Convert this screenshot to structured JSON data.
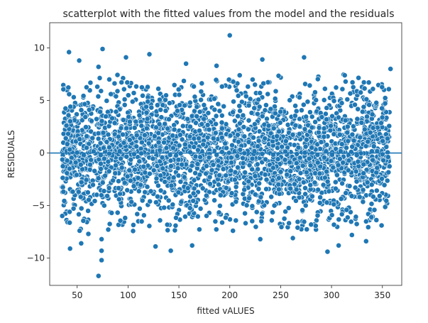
{
  "chart_data": {
    "type": "scatter",
    "title": "scatterplot with the fitted values from the model and the residuals",
    "xlabel": "fitted vALUES",
    "ylabel": "RESIDUALS",
    "xlim": [
      23,
      369
    ],
    "ylim": [
      -12.6,
      12.4
    ],
    "xticks": [
      50,
      100,
      150,
      200,
      250,
      300,
      350
    ],
    "yticks": [
      -10,
      -5,
      0,
      5,
      10
    ],
    "hline": 0,
    "grid": false,
    "point_color": "#1f77b4",
    "point_edge_color": "#ffffff",
    "line_color": "#1f77b4",
    "dense_band": {
      "x_range": [
        35,
        357
      ],
      "y_range": [
        -6,
        6
      ],
      "approx_points": 3000
    },
    "notable_points": [
      {
        "x": 200,
        "y": 11.2
      },
      {
        "x": 75,
        "y": 9.9
      },
      {
        "x": 42,
        "y": 9.6
      },
      {
        "x": 98,
        "y": 9.1
      },
      {
        "x": 273,
        "y": 9.1
      },
      {
        "x": 121,
        "y": 9.4
      },
      {
        "x": 232,
        "y": 8.9
      },
      {
        "x": 52,
        "y": 8.8
      },
      {
        "x": 157,
        "y": 8.5
      },
      {
        "x": 71,
        "y": 8.2
      },
      {
        "x": 187,
        "y": 8.3
      },
      {
        "x": 358,
        "y": 8.0
      },
      {
        "x": 43,
        "y": -9.1
      },
      {
        "x": 74,
        "y": -8.2
      },
      {
        "x": 74,
        "y": -9.3
      },
      {
        "x": 74,
        "y": -10.2
      },
      {
        "x": 71,
        "y": -11.7
      },
      {
        "x": 142,
        "y": -9.3
      },
      {
        "x": 296,
        "y": -9.4
      },
      {
        "x": 54,
        "y": -8.6
      },
      {
        "x": 127,
        "y": -8.9
      },
      {
        "x": 163,
        "y": -8.8
      },
      {
        "x": 230,
        "y": -8.2
      },
      {
        "x": 334,
        "y": -8.4
      },
      {
        "x": 307,
        "y": -8.8
      },
      {
        "x": 262,
        "y": -8.1
      },
      {
        "x": 61,
        "y": -7.7
      },
      {
        "x": 320,
        "y": -7.8
      }
    ]
  }
}
